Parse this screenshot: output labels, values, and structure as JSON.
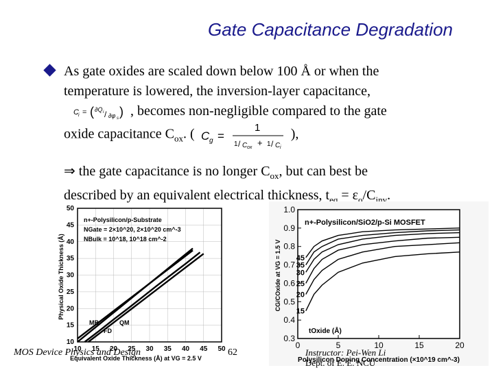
{
  "slide": {
    "title": "Gate Capacitance Degradation",
    "bullet_line1": "As gate oxides are scaled down below 100 Å or when the",
    "bullet_line2": "temperature is lowered, the inversion-layer capacitance,",
    "bullet_line3": ", becomes non-negligible compared to the gate",
    "bullet_line4_pre": "oxide capacitance C",
    "bullet_line4_sub": "ox",
    "bullet_line4_mid": ". (",
    "bullet_line4_post": "),",
    "ci_formula": "Ci = (∂Qi/∂φs)",
    "cg_formula": "Cg = 1 / (1/Cox + 1/Ci)",
    "implies_symbol": "⇒",
    "implies_line1_a": " the gate capacitance is no longer C",
    "implies_line1_sub": "ox",
    "implies_line1_b": ", but can best be",
    "implies_line2_a": "described by an equivalent electrical thickness, t",
    "implies_line2_sub1": "eq",
    "implies_line2_b": " = ε",
    "implies_line2_sub2": "o",
    "implies_line2_c": "/C",
    "implies_line2_sub3": "inv",
    "implies_line2_d": "."
  },
  "footer": {
    "course": "MOS Device Physics and Design",
    "page": "62",
    "instructor": "Instructor: Pei-Wen Li",
    "dept": "Dept. of E. E. NCU"
  },
  "chart_data": [
    {
      "type": "line",
      "ylabel": "Physical Oxide Thickness (Å)",
      "xlabel": "Equivalent Oxide Thickness (Å) at VG = 2.5 V",
      "xlim": [
        10,
        50
      ],
      "ylim": [
        10,
        50
      ],
      "x_ticks": [
        "10",
        "15",
        "20",
        "25",
        "30",
        "35",
        "40",
        "45",
        "50"
      ],
      "y_ticks": [
        "10",
        "15",
        "20",
        "25",
        "30",
        "35",
        "40",
        "45",
        "50"
      ],
      "legend_lines": [
        "n+-Polysilicon/p-Substrate",
        "NGate = 2×10^20, 2×10^20 cm^-3",
        "NBulk = 10^18, 10^18 cm^-2"
      ],
      "annotations": [
        "MB",
        "QM",
        "FD"
      ],
      "series": [
        {
          "x": [
            10,
            14,
            18,
            22,
            26,
            30,
            34,
            38,
            42
          ],
          "values": [
            10,
            13.5,
            17,
            20.5,
            24,
            27.5,
            31,
            34.5,
            38
          ]
        },
        {
          "x": [
            10,
            14,
            18,
            22,
            26,
            30,
            34,
            38,
            42
          ],
          "values": [
            11,
            14.3,
            17.6,
            20.9,
            24.2,
            27.5,
            30.8,
            34.1,
            37.4
          ]
        },
        {
          "x": [
            12,
            16,
            20,
            24,
            28,
            32,
            36,
            40,
            44
          ],
          "values": [
            10,
            13.3,
            16.7,
            20,
            23.4,
            26.8,
            30.1,
            33.4,
            36.8
          ]
        },
        {
          "x": [
            13,
            17,
            21,
            25,
            29,
            33,
            37,
            41,
            45
          ],
          "values": [
            10,
            13.3,
            16.6,
            19.9,
            23.2,
            26.5,
            29.8,
            33.1,
            36.4
          ]
        }
      ]
    },
    {
      "type": "line",
      "title": "n+-Polysilicon/SiO2/p-Si MOSFET",
      "ylabel": "CG/COxide at VG = 1.5 V",
      "xlabel": "Polysilicon Doping Concentration (×10^19 cm^-3)",
      "xlim": [
        0,
        20
      ],
      "ylim": [
        0.3,
        1.0
      ],
      "x_ticks": [
        "0",
        "5",
        "10",
        "15",
        "20"
      ],
      "y_ticks": [
        "0.3",
        "0.4",
        "0.5",
        "0.6",
        "0.7",
        "0.8",
        "0.9",
        "1.0"
      ],
      "curve_labels": [
        "45",
        "35",
        "30",
        "25",
        "20",
        "15"
      ],
      "annotation": "tOxide (Å)",
      "series": [
        {
          "name": "45",
          "x": [
            1,
            2,
            3,
            5,
            8,
            12,
            16,
            20
          ],
          "values": [
            0.74,
            0.8,
            0.83,
            0.86,
            0.88,
            0.89,
            0.895,
            0.9
          ]
        },
        {
          "name": "35",
          "x": [
            1,
            2,
            3,
            5,
            8,
            12,
            16,
            20
          ],
          "values": [
            0.7,
            0.77,
            0.8,
            0.84,
            0.86,
            0.875,
            0.885,
            0.89
          ]
        },
        {
          "name": "30",
          "x": [
            1,
            2,
            3,
            5,
            8,
            12,
            16,
            20
          ],
          "values": [
            0.66,
            0.73,
            0.77,
            0.81,
            0.84,
            0.86,
            0.87,
            0.875
          ]
        },
        {
          "name": "25",
          "x": [
            1,
            2,
            3,
            5,
            8,
            12,
            16,
            20
          ],
          "values": [
            0.6,
            0.68,
            0.73,
            0.78,
            0.81,
            0.83,
            0.845,
            0.85
          ]
        },
        {
          "name": "20",
          "x": [
            1,
            2,
            3,
            5,
            8,
            12,
            16,
            20
          ],
          "values": [
            0.54,
            0.62,
            0.67,
            0.73,
            0.77,
            0.8,
            0.81,
            0.82
          ]
        },
        {
          "name": "15",
          "x": [
            1,
            2,
            3,
            5,
            8,
            12,
            16,
            20
          ],
          "values": [
            0.45,
            0.54,
            0.59,
            0.66,
            0.71,
            0.745,
            0.76,
            0.77
          ]
        }
      ]
    }
  ]
}
